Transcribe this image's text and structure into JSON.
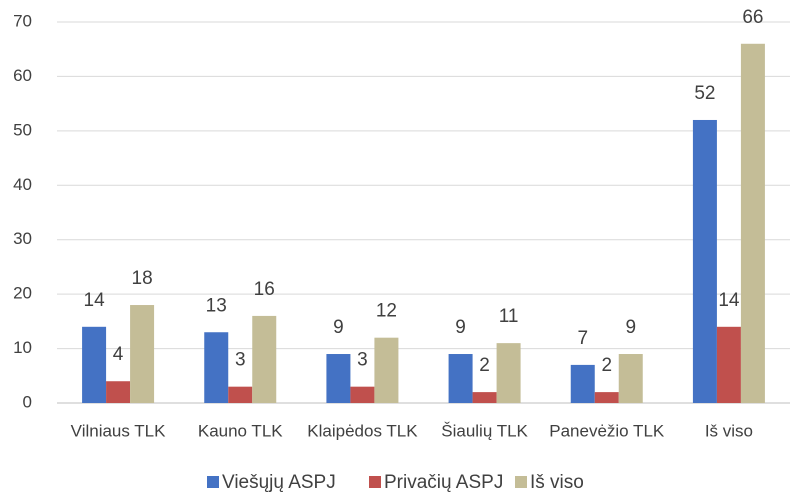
{
  "chart_data": {
    "type": "bar",
    "categories": [
      "Vilniaus TLK",
      "Kauno TLK",
      "Klaipėdos TLK",
      "Šiaulių TLK",
      "Panevėžio TLK",
      "Iš viso"
    ],
    "series": [
      {
        "name": "Viešųjų ASPJ",
        "color": "#4472c4",
        "values": [
          14,
          13,
          9,
          9,
          7,
          52
        ]
      },
      {
        "name": "Privačių ASPJ",
        "color": "#c0504d",
        "values": [
          4,
          3,
          3,
          2,
          2,
          14
        ]
      },
      {
        "name": "Iš viso",
        "color": "#c4bd97",
        "values": [
          18,
          16,
          12,
          11,
          9,
          66
        ]
      }
    ],
    "ylim": [
      0,
      70
    ],
    "yticks": [
      0,
      10,
      20,
      30,
      40,
      50,
      60,
      70
    ],
    "grid": true,
    "legend": "bottom"
  }
}
